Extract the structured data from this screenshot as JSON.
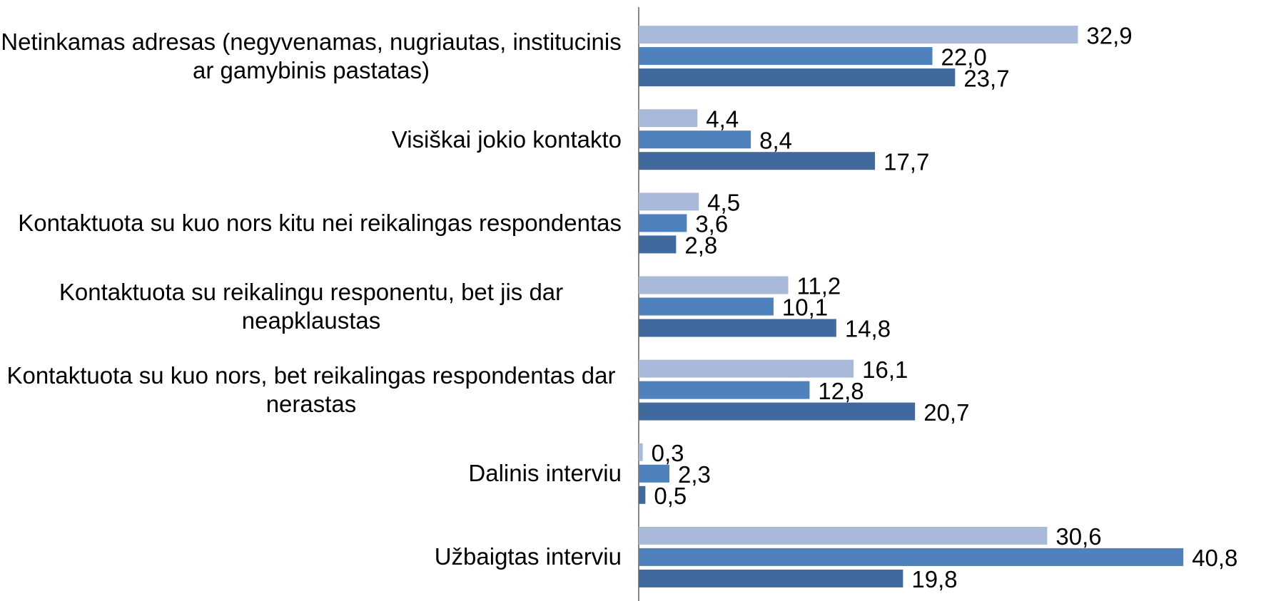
{
  "chart_data": {
    "type": "hbar",
    "categories": [
      "Netinkamas adresas (negyvenamas, nugriautas, institucinis ar gamybinis pastatas)",
      "Visiškai jokio kontakto",
      "Kontaktuota su kuo nors kitu nei reikalingas respondentas",
      "Kontaktuota su reikalingu responentu, bet jis dar neapklaustas",
      "Kontaktuota su kuo nors, bet reikalingas respondentas dar nerastas",
      "Dalinis interviu",
      "Užbaigtas interviu"
    ],
    "series": [
      {
        "color": "#a9b9d9",
        "values": [
          32.9,
          4.4,
          4.5,
          11.2,
          16.1,
          0.3,
          30.6
        ],
        "value_labels": [
          "32,9",
          "4,4",
          "4,5",
          "11,2",
          "16,1",
          "0,3",
          "30,6"
        ]
      },
      {
        "color": "#4f81bd",
        "values": [
          22.0,
          8.4,
          3.6,
          10.1,
          12.8,
          2.3,
          40.8
        ],
        "value_labels": [
          "22,0",
          "8,4",
          "3,6",
          "10,1",
          "12,8",
          "2,3",
          "40,8"
        ]
      },
      {
        "color": "#406a9d",
        "values": [
          23.7,
          17.7,
          2.8,
          14.8,
          20.7,
          0.5,
          19.8
        ],
        "value_labels": [
          "23,7",
          "17,7",
          "2,8",
          "14,8",
          "20,7",
          "0,5",
          "19,8"
        ]
      }
    ],
    "xlim": [
      0,
      42.5
    ]
  }
}
